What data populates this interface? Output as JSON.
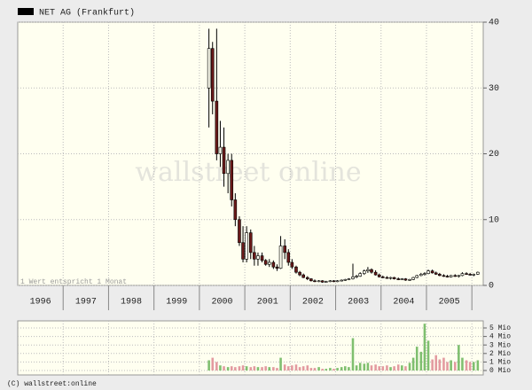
{
  "chart_data": [
    {
      "type": "candlestick",
      "title": "NET AG (Frankfurt)",
      "note": "1 Wert entspricht 1 Monat",
      "watermark": "wallstreet online",
      "x": [
        2000.21,
        2000.29,
        2000.38,
        2000.46,
        2000.54,
        2000.63,
        2000.71,
        2000.79,
        2000.88,
        2000.96,
        2001.04,
        2001.13,
        2001.21,
        2001.29,
        2001.38,
        2001.46,
        2001.54,
        2001.63,
        2001.71,
        2001.79,
        2001.88,
        2001.96,
        2002.04,
        2002.13,
        2002.21,
        2002.29,
        2002.38,
        2002.46,
        2002.54,
        2002.63,
        2002.71,
        2002.79,
        2002.88,
        2002.96,
        2003.04,
        2003.13,
        2003.21,
        2003.29,
        2003.38,
        2003.46,
        2003.54,
        2003.63,
        2003.71,
        2003.79,
        2003.88,
        2003.96,
        2004.04,
        2004.13,
        2004.21,
        2004.29,
        2004.38,
        2004.46,
        2004.54,
        2004.63,
        2004.71,
        2004.79,
        2004.88,
        2004.96,
        2005.04,
        2005.13,
        2005.21,
        2005.29,
        2005.38,
        2005.46,
        2005.54,
        2005.63,
        2005.71,
        2005.79,
        2005.88,
        2005.96,
        2006.04,
        2006.13
      ],
      "open": [
        30,
        36,
        28,
        20,
        21,
        17,
        19,
        13,
        10,
        6.5,
        4,
        8,
        5,
        4,
        4.5,
        3.8,
        3.2,
        3.5,
        2.8,
        2.6,
        6,
        5,
        3.5,
        2.8,
        2,
        1.6,
        1.2,
        1,
        0.7,
        0.6,
        0.7,
        0.5,
        0.6,
        0.7,
        0.6,
        0.7,
        0.8,
        0.9,
        1,
        1.3,
        1.4,
        1.8,
        2.2,
        2.4,
        2,
        1.6,
        1.3,
        1.2,
        1.1,
        1.2,
        1,
        0.9,
        1,
        0.8,
        0.9,
        1.2,
        1.5,
        1.7,
        1.8,
        2.2,
        1.9,
        1.7,
        1.5,
        1.4,
        1.3,
        1.5,
        1.4,
        1.5,
        1.8,
        1.7,
        1.6,
        1.7
      ],
      "high": [
        39,
        37,
        39,
        25,
        24,
        20,
        20,
        14,
        10.5,
        9,
        9,
        8.5,
        6,
        5,
        5,
        4,
        4,
        3.8,
        3.2,
        7.5,
        7,
        5.5,
        4,
        3,
        2.2,
        1.8,
        1.4,
        1.1,
        0.9,
        0.8,
        0.8,
        0.7,
        0.8,
        0.8,
        0.8,
        0.9,
        1,
        1.1,
        3.3,
        1.6,
        2,
        2.4,
        2.8,
        2.6,
        2.3,
        1.8,
        1.5,
        1.4,
        1.3,
        1.3,
        1.2,
        1.1,
        1.1,
        1,
        1.3,
        1.6,
        1.9,
        2,
        2.4,
        2.4,
        2.1,
        1.9,
        1.7,
        1.6,
        1.6,
        1.7,
        1.6,
        2,
        2,
        1.9,
        1.8,
        2.1
      ],
      "low": [
        24,
        26,
        19,
        18,
        15,
        14,
        12,
        9,
        6,
        3.5,
        3.5,
        4,
        3,
        3,
        3.5,
        3,
        2.8,
        2.5,
        2.2,
        2.5,
        4,
        3,
        2.5,
        1.8,
        1.4,
        1.1,
        0.8,
        0.6,
        0.5,
        0.5,
        0.4,
        0.4,
        0.5,
        0.5,
        0.5,
        0.6,
        0.7,
        0.8,
        0.9,
        1.1,
        1.3,
        1.6,
        1.9,
        1.8,
        1.5,
        1.2,
        1.1,
        1,
        0.9,
        0.9,
        0.8,
        0.8,
        0.7,
        0.7,
        0.8,
        1.1,
        1.4,
        1.5,
        1.7,
        1.8,
        1.6,
        1.4,
        1.3,
        1.2,
        1.2,
        1.3,
        1.2,
        1.4,
        1.6,
        1.5,
        1.4,
        1.6
      ],
      "close": [
        36,
        28,
        20,
        21,
        17,
        19,
        13,
        10,
        6.5,
        4,
        8,
        5,
        4,
        4.5,
        3.8,
        3.2,
        3.5,
        2.8,
        2.6,
        6,
        5,
        3.5,
        2.8,
        2,
        1.6,
        1.2,
        1,
        0.7,
        0.6,
        0.7,
        0.5,
        0.6,
        0.7,
        0.6,
        0.7,
        0.8,
        0.9,
        1,
        1.3,
        1.4,
        1.8,
        2.2,
        2.4,
        2,
        1.6,
        1.3,
        1.2,
        1.1,
        1.2,
        1,
        0.9,
        1,
        0.8,
        0.9,
        1.2,
        1.5,
        1.7,
        1.8,
        2.2,
        1.9,
        1.7,
        1.5,
        1.4,
        1.3,
        1.5,
        1.4,
        1.5,
        1.8,
        1.7,
        1.6,
        1.7,
        2
      ],
      "up_color": "#000000",
      "down_color": "#6b1a1a",
      "xlim": [
        1996,
        2006.25
      ],
      "xticks": [
        {
          "value": 1996.5,
          "label": "1996"
        },
        {
          "value": 1997.5,
          "label": "1997"
        },
        {
          "value": 1998.5,
          "label": "1998"
        },
        {
          "value": 1999.5,
          "label": "1999"
        },
        {
          "value": 2000.5,
          "label": "2000"
        },
        {
          "value": 2001.5,
          "label": "2001"
        },
        {
          "value": 2002.5,
          "label": "2002"
        },
        {
          "value": 2003.5,
          "label": "2003"
        },
        {
          "value": 2004.5,
          "label": "2004"
        },
        {
          "value": 2005.5,
          "label": "2005"
        }
      ],
      "ylim": [
        0,
        40
      ],
      "yticks": [
        0,
        10,
        20,
        30,
        40
      ],
      "grid": true
    },
    {
      "type": "bar",
      "name": "volume",
      "values": [
        1.2,
        1.5,
        1.0,
        0.6,
        0.5,
        0.4,
        0.5,
        0.4,
        0.5,
        0.6,
        0.5,
        0.4,
        0.5,
        0.4,
        0.4,
        0.5,
        0.4,
        0.4,
        0.3,
        1.5,
        0.7,
        0.5,
        0.6,
        0.7,
        0.4,
        0.5,
        0.6,
        0.3,
        0.3,
        0.4,
        0.2,
        0.2,
        0.3,
        0.2,
        0.3,
        0.4,
        0.5,
        0.4,
        3.8,
        0.6,
        0.9,
        0.8,
        0.9,
        0.6,
        0.7,
        0.5,
        0.5,
        0.6,
        0.4,
        0.5,
        0.7,
        0.6,
        0.5,
        0.9,
        1.5,
        2.8,
        2.2,
        5.5,
        3.5,
        1.3,
        1.8,
        1.3,
        1.5,
        1.0,
        1.2,
        1.0,
        3.0,
        1.5,
        1.2,
        1.0,
        1.0,
        1.2
      ],
      "up_color": "#7fbf6f",
      "down_color": "#e39aa0",
      "ylim": [
        0,
        5.5
      ],
      "yticks": [
        {
          "value": 0,
          "label": "0 Mio"
        },
        {
          "value": 1,
          "label": "1 Mio"
        },
        {
          "value": 2,
          "label": "2 Mio"
        },
        {
          "value": 3,
          "label": "3 Mio"
        },
        {
          "value": 4,
          "label": "4 Mio"
        },
        {
          "value": 5,
          "label": "5 Mio"
        }
      ],
      "grid": true
    }
  ],
  "copyright": "(C) wallstreet:online"
}
